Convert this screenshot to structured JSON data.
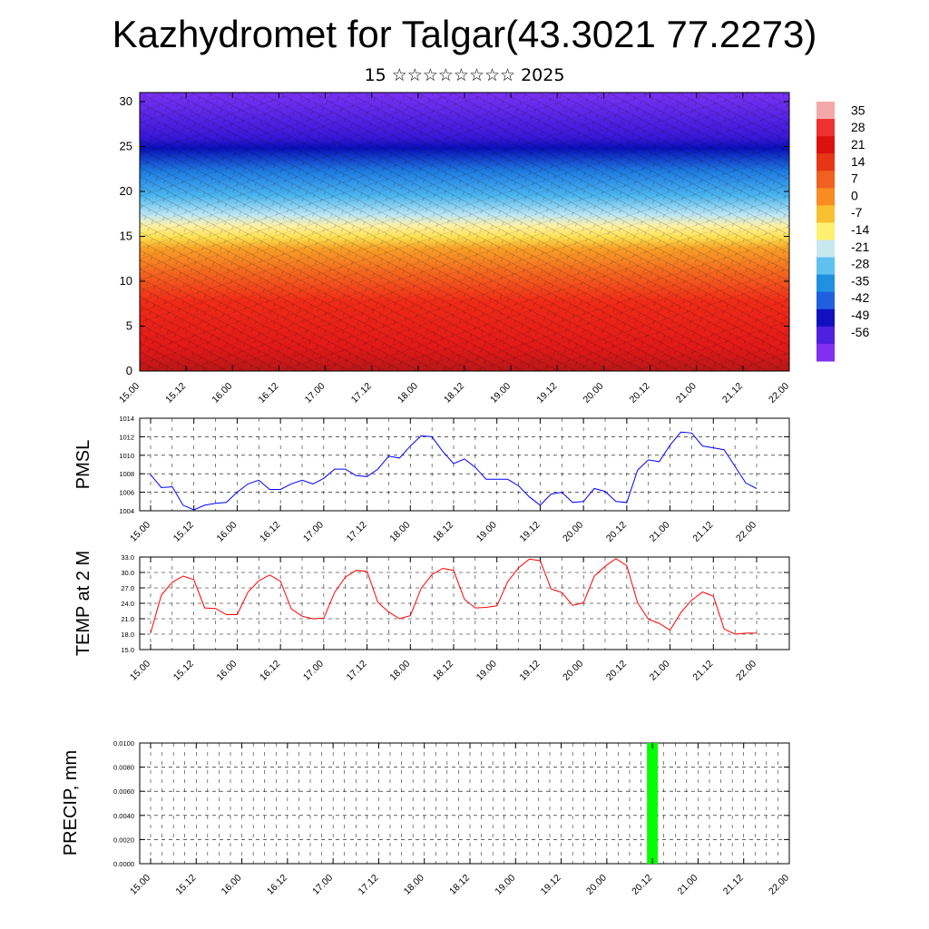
{
  "header": {
    "title": "Kazhydromet for Talgar(43.3021 77.2273)",
    "subtitle": "15 ☆☆☆☆☆☆☆☆ 2025"
  },
  "colors": {
    "pmsl_line": "#0000ff",
    "temp_line": "#ff0000",
    "precip_bar": "#00ff00",
    "axis": "#000000"
  },
  "chart_data": [
    {
      "type": "heatmap",
      "title": "",
      "ylim": [
        0,
        30
      ],
      "yticks": [
        "0",
        "5",
        "10",
        "15",
        "20",
        "25",
        "30"
      ],
      "xtick_labels": [
        "15.00",
        "15.12",
        "16.00",
        "16.12",
        "17.00",
        "17.12",
        "18.00",
        "18.12",
        "19.00",
        "19.12",
        "20.00",
        "20.12",
        "21.00",
        "21.12",
        "22.00"
      ],
      "colorbar_labels": [
        "35",
        "28",
        "21",
        "14",
        "7",
        "0",
        "-7",
        "-14",
        "-21",
        "-28",
        "-35",
        "-42",
        "-49",
        "-56"
      ],
      "colorbar_colors": [
        "#f5a8a8",
        "#ee3030",
        "#dd1010",
        "#e83515",
        "#f06020",
        "#f88c20",
        "#f8c030",
        "#fff070",
        "#c8e8f0",
        "#60c0f0",
        "#2090e0",
        "#2060e0",
        "#1010c0",
        "#5020e0",
        "#8030f0"
      ],
      "overlay": "wind barbs"
    },
    {
      "type": "line",
      "ylabel": "PMSL",
      "ylim": [
        1004,
        1014
      ],
      "yticks": [
        "1004",
        "1006",
        "1008",
        "1010",
        "1012",
        "1014"
      ],
      "xtick_labels": [
        "15.00",
        "15.12",
        "16.00",
        "16.12",
        "17.00",
        "17.12",
        "18.00",
        "18.12",
        "19.00",
        "19.12",
        "20.00",
        "20.12",
        "21.00",
        "21.12",
        "22.00"
      ],
      "series": [
        {
          "values": [
            1007.9,
            1006.5,
            1006.6,
            1004.6,
            1004.1,
            1004.6,
            1004.8,
            1004.9,
            1006.0,
            1006.9,
            1007.3,
            1006.3,
            1006.3,
            1006.9,
            1007.3,
            1006.9,
            1007.5,
            1008.5,
            1008.5,
            1007.8,
            1007.7,
            1008.5,
            1009.9,
            1009.7,
            1011.0,
            1012.1,
            1012.0,
            1010.4,
            1009.1,
            1009.6,
            1008.7,
            1007.4,
            1007.4,
            1007.4,
            1006.7,
            1005.5,
            1004.6,
            1005.8,
            1006.0,
            1004.9,
            1005.0,
            1006.4,
            1006.1,
            1005.0,
            1004.9,
            1008.4,
            1009.5,
            1009.3,
            1011.1,
            1012.5,
            1012.4,
            1011.0,
            1010.8,
            1010.6,
            1008.8,
            1007.0,
            1006.4
          ]
        }
      ]
    },
    {
      "type": "line",
      "ylabel": "TEMP at 2 M",
      "ylim": [
        15.0,
        33.0
      ],
      "yticks": [
        "15.0",
        "18.0",
        "21.0",
        "24.0",
        "27.0",
        "30.0",
        "33.0"
      ],
      "xtick_labels": [
        "15.00",
        "15.12",
        "16.00",
        "16.12",
        "17.00",
        "17.12",
        "18.00",
        "18.12",
        "19.00",
        "19.12",
        "20.00",
        "20.12",
        "21.00",
        "21.12",
        "22.00"
      ],
      "series": [
        {
          "values": [
            18.2,
            25.6,
            28.1,
            29.3,
            28.6,
            23.1,
            23.0,
            21.8,
            21.8,
            26.2,
            28.4,
            29.5,
            28.3,
            22.9,
            21.5,
            21.0,
            21.1,
            26.1,
            29.1,
            30.4,
            30.2,
            24.2,
            22.3,
            21.0,
            21.6,
            26.9,
            29.6,
            30.8,
            30.4,
            24.8,
            23.1,
            23.2,
            23.5,
            28.2,
            30.9,
            32.6,
            32.3,
            26.8,
            26.1,
            23.6,
            24.1,
            29.3,
            31.2,
            32.7,
            31.3,
            24.1,
            20.9,
            20.1,
            18.8,
            22.2,
            24.6,
            26.2,
            25.4,
            19.0,
            18.0,
            18.2,
            18.2
          ]
        }
      ]
    },
    {
      "type": "bar",
      "ylabel": "PRECIP, mm",
      "ylim": [
        0.0,
        0.01
      ],
      "yticks": [
        "0.0000",
        "0.0020",
        "0.0040",
        "0.0060",
        "0.0080",
        "0.0100"
      ],
      "xtick_labels": [
        "15.00",
        "15.12",
        "16.00",
        "16.12",
        "17.00",
        "17.12",
        "18.00",
        "18.12",
        "19.00",
        "19.12",
        "20.00",
        "20.12",
        "21.00",
        "21.12",
        "22.00"
      ],
      "series": [
        {
          "bars": [
            {
              "x": "20.12",
              "value": 0.01
            }
          ]
        }
      ]
    }
  ]
}
